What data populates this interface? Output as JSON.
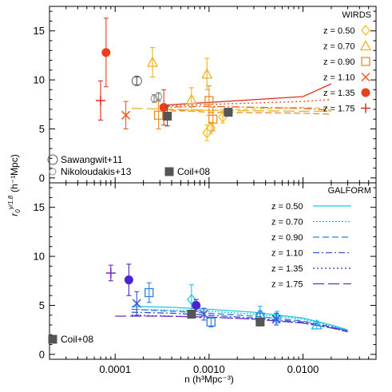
{
  "figure": {
    "ylabel_main": "r",
    "ylabel_sub": "0",
    "ylabel_sup": "γ/1.8",
    "ylabel_units": "(h⁻¹Mpc)",
    "xlabel": "n (h³Mpc⁻³)"
  },
  "chart_data": [
    {
      "type": "scatter",
      "panel": "top",
      "xscale": "log",
      "xlim": [
        2e-05,
        0.06
      ],
      "ylim": [
        -0.5,
        17.5
      ],
      "xticks": [
        0.0001,
        0.001,
        0.01
      ],
      "xticklabels": [
        "0.0001",
        "0.0010",
        "0.0100"
      ],
      "yticks": [
        0,
        5,
        10,
        15
      ],
      "yticklabels": [
        "0",
        "5",
        "10",
        "15"
      ],
      "legend_title": "WIRDS",
      "legend_position": "top-right",
      "series": [
        {
          "name": "z = 0.50",
          "marker": "diamond",
          "color": "#f0c020",
          "points": [
            {
              "x": 0.00095,
              "y": 4.6,
              "err": 0.8
            },
            {
              "x": 0.00105,
              "y": 5.1,
              "err": 0.6
            },
            {
              "x": 0.0014,
              "y": 6.2,
              "err": 0.6
            }
          ],
          "line": {
            "x": [
              0.0004,
              0.001,
              0.01,
              0.02
            ],
            "y": [
              6.8,
              6.9,
              7.2,
              7.1
            ],
            "dash": "6,4"
          }
        },
        {
          "name": "z = 0.70",
          "marker": "triangle",
          "color": "#f0b020",
          "points": [
            {
              "x": 0.00025,
              "y": 11.8,
              "err": 1.5
            },
            {
              "x": 0.00065,
              "y": 8.0,
              "err": 1.2
            },
            {
              "x": 0.00095,
              "y": 10.6,
              "err": 1.6
            }
          ],
          "line": {
            "x": [
              0.00015,
              0.0004,
              0.001,
              0.01,
              0.02
            ],
            "y": [
              7.1,
              7.0,
              6.9,
              6.8,
              6.8
            ],
            "dash": "14,5"
          }
        },
        {
          "name": "z = 0.90",
          "marker": "square",
          "color": "#ec8d24",
          "points": [
            {
              "x": 0.00029,
              "y": 6.4,
              "err": 1.4
            },
            {
              "x": 0.001,
              "y": 7.9,
              "err": 1.5
            },
            {
              "x": 0.0011,
              "y": 6.0,
              "err": 1.2
            }
          ],
          "line": {
            "x": [
              0.0003,
              0.001,
              0.01,
              0.02
            ],
            "y": [
              7.0,
              6.7,
              6.6,
              6.5
            ],
            "dash": "8,4"
          }
        },
        {
          "name": "z = 1.10",
          "marker": "x",
          "color": "#e85d24",
          "points": [
            {
              "x": 0.00013,
              "y": 6.4,
              "err": 1.4
            }
          ],
          "line": {
            "x": [
              0.0003,
              0.001,
              0.01,
              0.02
            ],
            "y": [
              7.2,
              7.3,
              7.1,
              6.9
            ],
            "dash": "10,3,2,3"
          }
        },
        {
          "name": "z = 1.35",
          "marker": "filled-circle",
          "color": "#e8401c",
          "points": [
            {
              "x": 8e-05,
              "y": 12.8,
              "err": 3.5
            },
            {
              "x": 0.00033,
              "y": 7.2,
              "err": 1.8
            }
          ],
          "line": {
            "x": [
              0.0003,
              0.001,
              0.01,
              0.02
            ],
            "y": [
              7.3,
              7.5,
              7.8,
              8.0
            ],
            "dash": "2,3"
          }
        },
        {
          "name": "z = 1.75",
          "marker": "plus",
          "color": "#e0301c",
          "points": [
            {
              "x": 7e-05,
              "y": 7.9,
              "err": 2.0
            }
          ],
          "line": {
            "x": [
              0.0003,
              0.001,
              0.01,
              0.02
            ],
            "y": [
              7.4,
              7.7,
              8.3,
              9.6
            ],
            "dash": ""
          }
        }
      ],
      "reference_points": [
        {
          "name": "Sawangwit+11",
          "marker": "open-circle-large",
          "color": "#555555",
          "points": [
            {
              "x": 0.00017,
              "y": 9.9,
              "err": 0.4
            }
          ]
        },
        {
          "name": "Nikoloudakis+13",
          "marker": "open-circle-small",
          "color": "#888888",
          "points": [
            {
              "x": 0.00026,
              "y": 8.1,
              "err": 0.4
            },
            {
              "x": 0.00029,
              "y": 8.3,
              "err": 0.4
            }
          ]
        },
        {
          "name": "Coil+08",
          "marker": "filled-square",
          "color": "#555555",
          "points": [
            {
              "x": 0.00036,
              "y": 6.3,
              "err": 1.0
            },
            {
              "x": 0.0016,
              "y": 6.7,
              "err": 0.4
            }
          ]
        }
      ]
    },
    {
      "type": "scatter",
      "panel": "bottom",
      "xscale": "log",
      "xlim": [
        2e-05,
        0.06
      ],
      "ylim": [
        -0.5,
        17.5
      ],
      "xticks": [
        0.0001,
        0.001,
        0.01
      ],
      "xticklabels": [
        "0.0001",
        "0.0010",
        "0.0100"
      ],
      "yticks": [
        0,
        5,
        10,
        15
      ],
      "yticklabels": [
        "0",
        "5",
        "10",
        "15"
      ],
      "legend_title": "GALFORM",
      "legend_position": "top-right",
      "series": [
        {
          "name": "z = 0.50",
          "marker": "diamond",
          "color": "#20c8e0",
          "points": [
            {
              "x": 0.00065,
              "y": 5.6,
              "err": 1.5
            },
            {
              "x": 0.0053,
              "y": 3.8,
              "err": 0.6
            }
          ],
          "line": {
            "x": [
              0.00015,
              0.0004,
              0.001,
              0.003,
              0.01,
              0.02,
              0.03
            ],
            "y": [
              4.9,
              4.8,
              4.6,
              4.3,
              3.7,
              3.0,
              2.5
            ],
            "dash": ""
          }
        },
        {
          "name": "z = 0.70",
          "marker": "triangle",
          "color": "#20b8e8",
          "points": [
            {
              "x": 0.0035,
              "y": 4.1,
              "err": 0.8
            },
            {
              "x": 0.014,
              "y": 3.0,
              "err": 0.4
            }
          ],
          "line": {
            "x": [
              0.00015,
              0.0004,
              0.001,
              0.003,
              0.01,
              0.02,
              0.03
            ],
            "y": [
              4.6,
              4.5,
              4.4,
              4.1,
              3.6,
              2.9,
              2.4
            ],
            "dash": "2,2"
          }
        },
        {
          "name": "z = 0.90",
          "marker": "square",
          "color": "#2f7fe0",
          "points": [
            {
              "x": 0.00023,
              "y": 6.3,
              "err": 1.0
            },
            {
              "x": 0.00105,
              "y": 3.3,
              "err": 0.5
            },
            {
              "x": 0.0035,
              "y": 3.8,
              "err": 0.6
            }
          ],
          "line": {
            "x": [
              0.00015,
              0.0004,
              0.001,
              0.003,
              0.01,
              0.02,
              0.03
            ],
            "y": [
              4.6,
              4.4,
              4.2,
              3.9,
              3.4,
              2.8,
              2.4
            ],
            "dash": "8,4"
          }
        },
        {
          "name": "z = 1.10",
          "marker": "x",
          "color": "#3850d8",
          "points": [
            {
              "x": 0.00017,
              "y": 5.2,
              "err": 1.2
            },
            {
              "x": 0.00088,
              "y": 4.1,
              "err": 0.6
            },
            {
              "x": 0.0052,
              "y": 3.6,
              "err": 0.6
            }
          ],
          "line": {
            "x": [
              0.00015,
              0.0004,
              0.001,
              0.003,
              0.01,
              0.02,
              0.03
            ],
            "y": [
              4.3,
              4.2,
              4.0,
              3.7,
              3.3,
              2.8,
              2.4
            ],
            "dash": "8,3,2,3"
          }
        },
        {
          "name": "z = 1.35",
          "marker": "filled-circle",
          "color": "#4a24d0",
          "points": [
            {
              "x": 0.00014,
              "y": 7.6,
              "err": 1.6
            },
            {
              "x": 0.00073,
              "y": 5.0,
              "err": 0.6
            }
          ],
          "line": {
            "x": [
              0.00015,
              0.0004,
              0.001,
              0.003,
              0.01,
              0.02,
              0.03
            ],
            "y": [
              4.0,
              3.9,
              3.8,
              3.6,
              3.2,
              2.7,
              2.3
            ],
            "dash": "2,3"
          }
        },
        {
          "name": "z = 1.75",
          "marker": "plus",
          "color": "#6a2cb8",
          "points": [
            {
              "x": 9e-05,
              "y": 8.3,
              "err": 0.8
            }
          ],
          "line": {
            "x": [
              0.0001,
              0.0003,
              0.001,
              0.003,
              0.01,
              0.02,
              0.03
            ],
            "y": [
              3.9,
              3.9,
              3.8,
              3.6,
              3.2,
              2.7,
              2.3
            ],
            "dash": "14,5"
          }
        }
      ],
      "reference_points": [
        {
          "name": "Coil+08",
          "marker": "filled-square",
          "color": "#555555",
          "points": [
            {
              "x": 0.00065,
              "y": 4.1,
              "err": 0.3
            },
            {
              "x": 0.0035,
              "y": 3.3,
              "err": 0.3
            }
          ]
        }
      ]
    }
  ]
}
